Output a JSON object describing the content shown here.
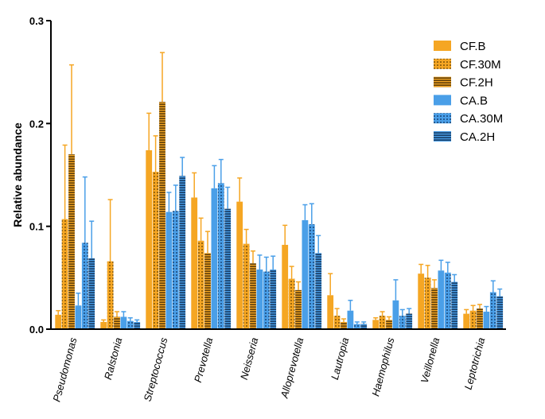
{
  "chart_data": {
    "type": "bar",
    "title": "",
    "xlabel": "",
    "ylabel": "Relative abundance",
    "ylim": [
      0,
      0.3
    ],
    "yticks": [
      "0.0",
      "0.1",
      "0.2",
      "0.3"
    ],
    "yticks_values": [
      0,
      0.1,
      0.2,
      0.3
    ],
    "grid": false,
    "legend_position": "top-right",
    "categories": [
      "Pseudomonas",
      "Ralstonia",
      "Streptococcus",
      "Prevotella",
      "Neisseria",
      "Alloprevotella",
      "Lautropia",
      "Haemophilus",
      "Veillonella",
      "Leptotrichia"
    ],
    "series": [
      {
        "name": "CF.B",
        "color": "#F5A623",
        "pattern": "solid",
        "values": [
          0.014,
          0.007,
          0.174,
          0.128,
          0.124,
          0.082,
          0.033,
          0.009,
          0.054,
          0.015
        ],
        "errors": [
          0.004,
          0.002,
          0.036,
          0.024,
          0.023,
          0.019,
          0.021,
          0.002,
          0.009,
          0.004
        ]
      },
      {
        "name": "CF.30M",
        "color": "#F5A623",
        "pattern": "dots",
        "values": [
          0.107,
          0.066,
          0.153,
          0.086,
          0.083,
          0.049,
          0.013,
          0.013,
          0.05,
          0.018
        ],
        "errors": [
          0.072,
          0.06,
          0.035,
          0.022,
          0.014,
          0.012,
          0.007,
          0.004,
          0.012,
          0.005
        ]
      },
      {
        "name": "CF.2H",
        "color": "#F5A623",
        "pattern": "lines",
        "values": [
          0.17,
          0.012,
          0.221,
          0.074,
          0.064,
          0.038,
          0.007,
          0.009,
          0.04,
          0.02
        ],
        "errors": [
          0.087,
          0.005,
          0.048,
          0.021,
          0.012,
          0.008,
          0.003,
          0.003,
          0.008,
          0.004
        ]
      },
      {
        "name": "CA.B",
        "color": "#4A9FE8",
        "pattern": "solid",
        "values": [
          0.023,
          0.012,
          0.114,
          0.137,
          0.058,
          0.106,
          0.018,
          0.028,
          0.057,
          0.017
        ],
        "errors": [
          0.012,
          0.005,
          0.019,
          0.022,
          0.014,
          0.015,
          0.01,
          0.02,
          0.01,
          0.005
        ]
      },
      {
        "name": "CA.30M",
        "color": "#4A9FE8",
        "pattern": "dots",
        "values": [
          0.084,
          0.008,
          0.115,
          0.142,
          0.056,
          0.102,
          0.005,
          0.013,
          0.055,
          0.036
        ],
        "errors": [
          0.064,
          0.003,
          0.025,
          0.023,
          0.014,
          0.02,
          0.002,
          0.006,
          0.01,
          0.011
        ]
      },
      {
        "name": "CA.2H",
        "color": "#4A9FE8",
        "pattern": "lines",
        "values": [
          0.069,
          0.007,
          0.149,
          0.117,
          0.058,
          0.074,
          0.005,
          0.015,
          0.046,
          0.032
        ],
        "errors": [
          0.036,
          0.002,
          0.018,
          0.021,
          0.013,
          0.017,
          0.002,
          0.005,
          0.007,
          0.007
        ]
      }
    ]
  }
}
